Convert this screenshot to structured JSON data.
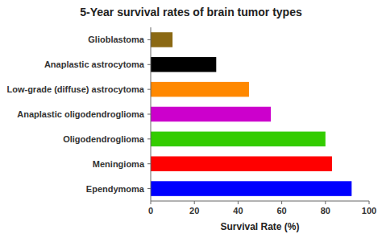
{
  "chart_data": {
    "type": "bar",
    "orientation": "horizontal",
    "title": "5-Year survival rates of brain tumor types",
    "categories": [
      "Ependymoma",
      "Meningioma",
      "Oligodendroglioma",
      "Anaplastic oligodendroglioma",
      "Low-grade (diffuse) astrocytoma",
      "Anaplastic astrocytoma",
      "Glioblastoma"
    ],
    "values": [
      92,
      83,
      80,
      55,
      45,
      30,
      10
    ],
    "colors": [
      "#0000ff",
      "#ff0000",
      "#33cc00",
      "#cc00cc",
      "#ff8800",
      "#000000",
      "#8B6914"
    ],
    "xlabel": "Survival Rate (%)",
    "xlim": [
      0,
      100
    ],
    "xticks": [
      0,
      20,
      40,
      60,
      80,
      100
    ],
    "grid": false
  }
}
